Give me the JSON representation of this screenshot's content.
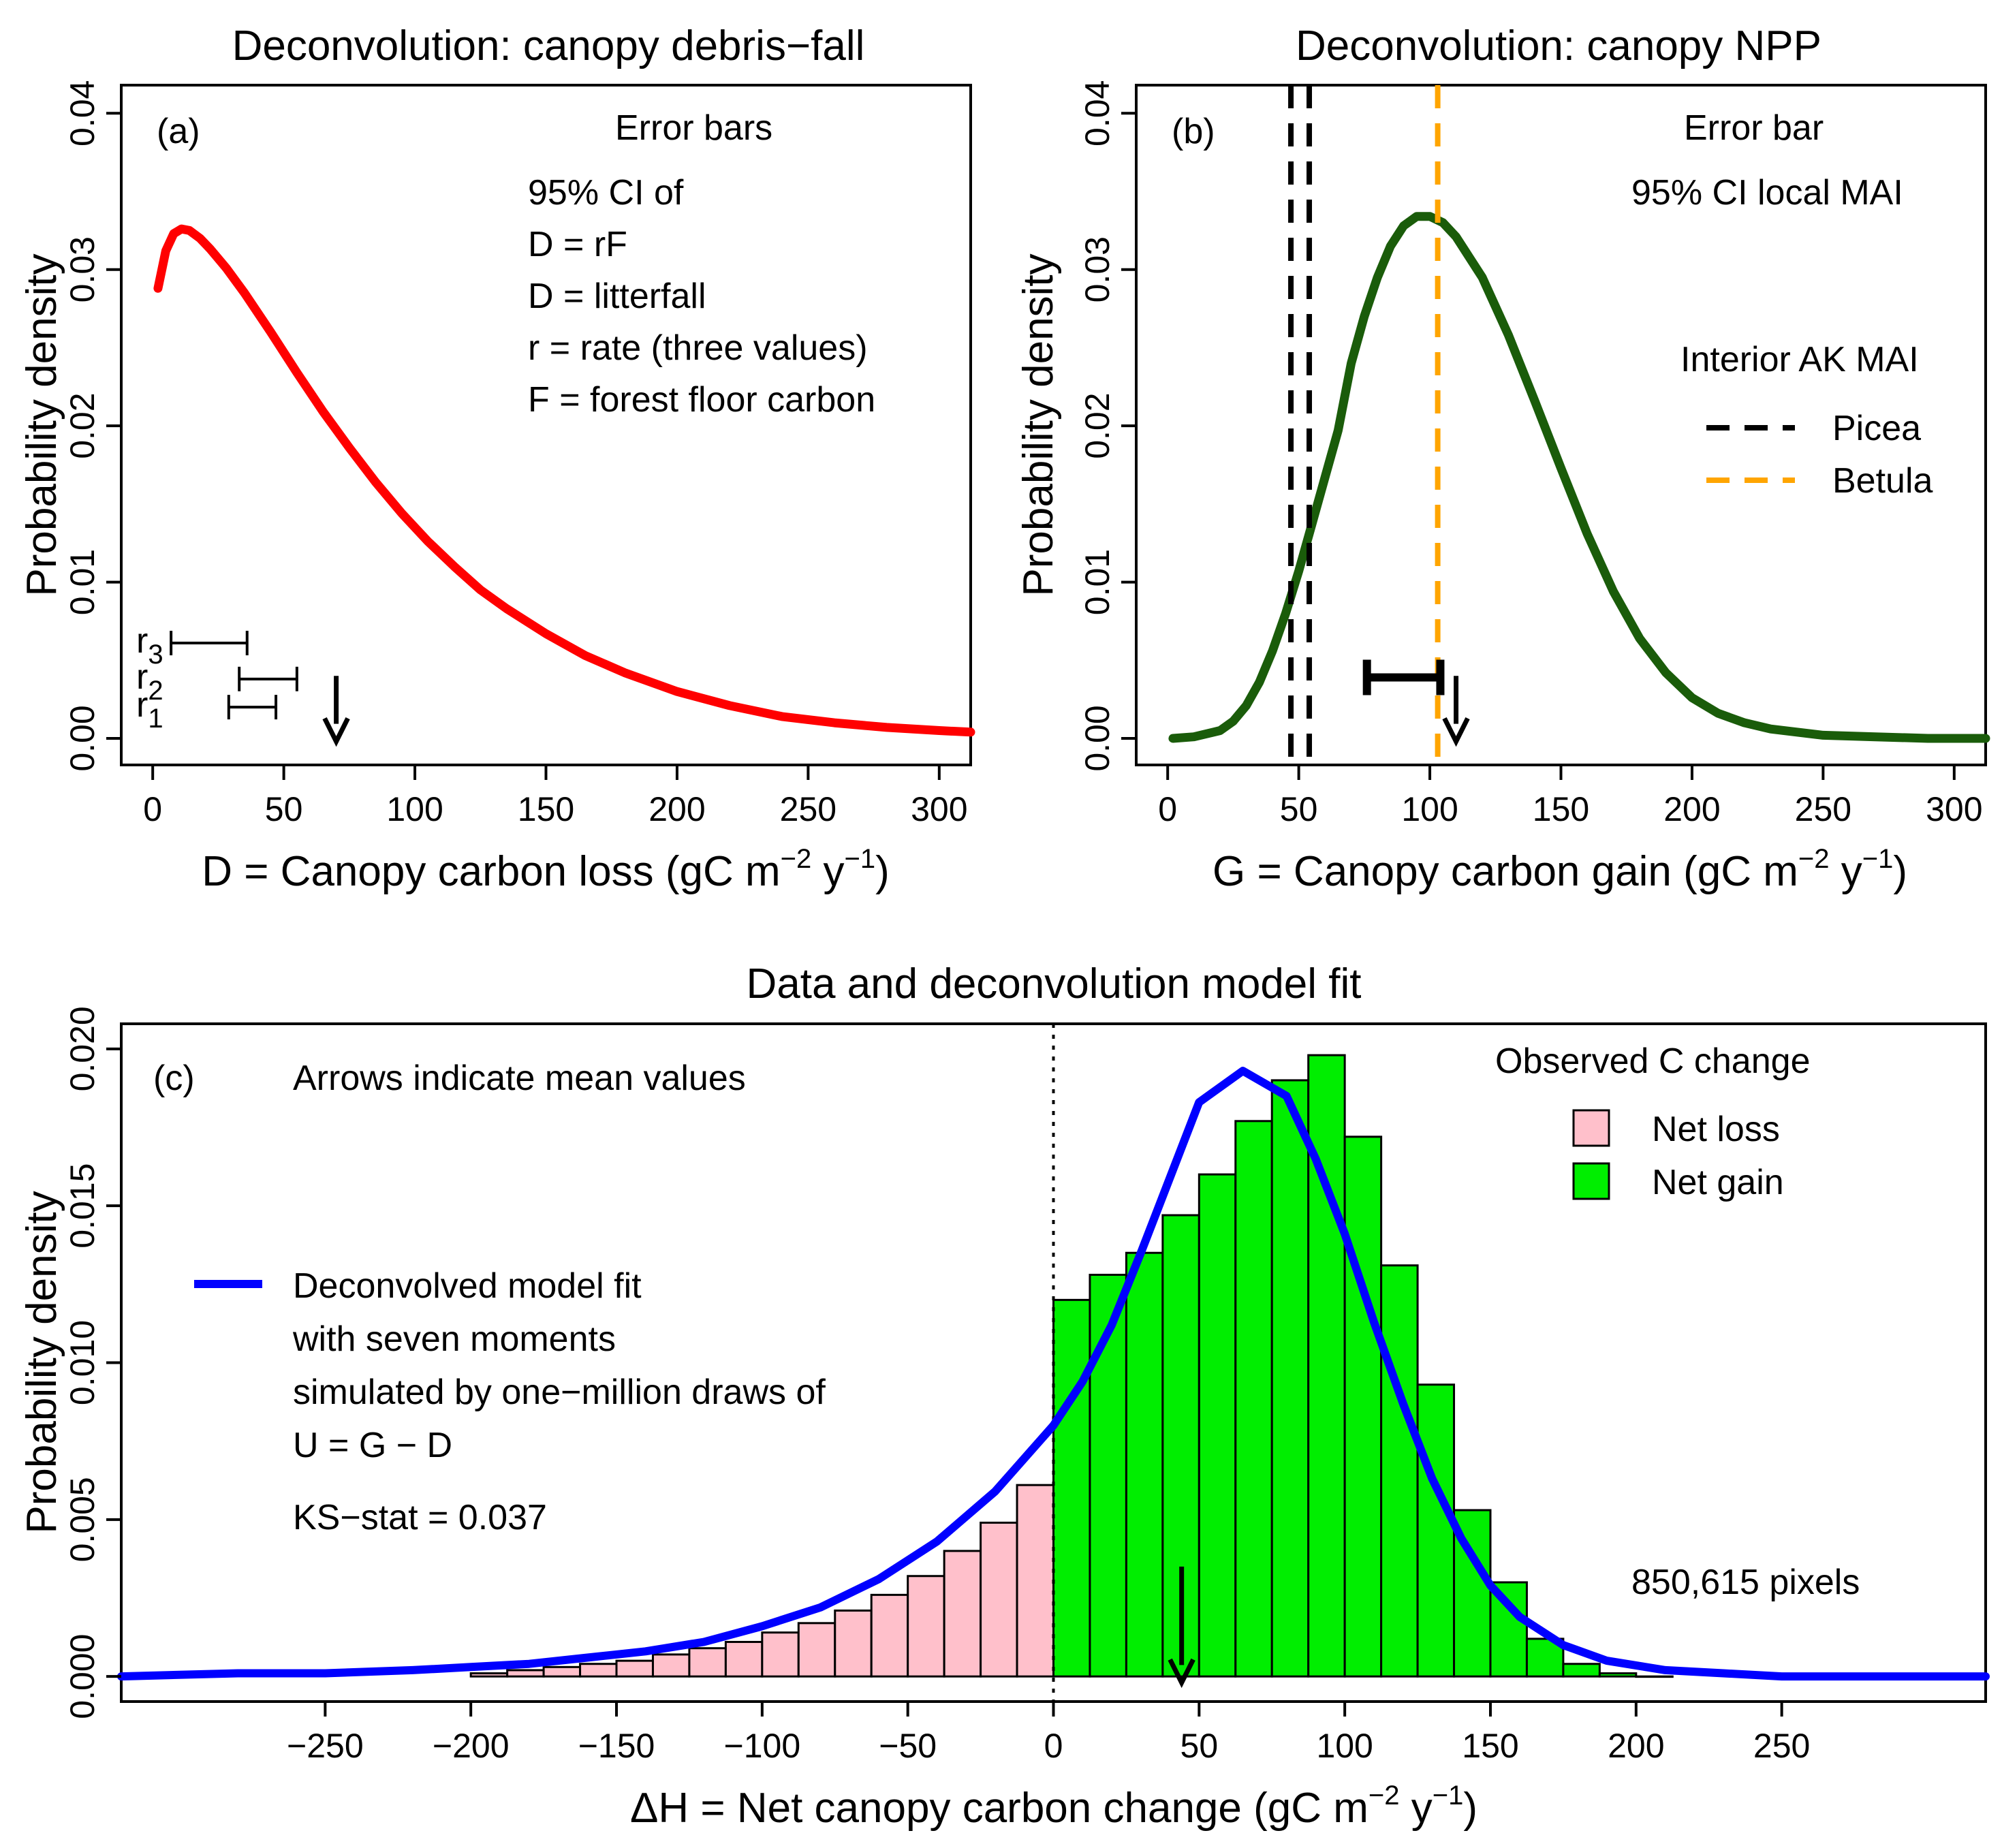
{
  "chart_data": [
    {
      "panel": "(a)",
      "type": "line",
      "title": "Deconvolution: canopy debris−fall",
      "xlabel": {
        "prefix": "D = Canopy carbon loss (gC m",
        "sup1": "−2",
        "mid": " y",
        "sup2": "−1",
        "suffix": ")"
      },
      "ylabel": "Probability density",
      "xlim": [
        -12,
        312
      ],
      "ylim": [
        -0.0017,
        0.0418
      ],
      "xticks": [
        0,
        50,
        100,
        150,
        200,
        250,
        300
      ],
      "yticks": [
        0.0,
        0.01,
        0.02,
        0.03,
        0.04
      ],
      "ytick_labels": [
        "0.00",
        "0.01",
        "0.02",
        "0.03",
        "0.04"
      ],
      "series": [
        {
          "color": "#ff0000",
          "x": [
            2,
            5,
            8,
            11,
            14,
            18,
            22,
            28,
            35,
            45,
            55,
            65,
            75,
            85,
            95,
            105,
            115,
            125,
            135,
            150,
            165,
            180,
            200,
            220,
            240,
            260,
            280,
            300,
            312
          ],
          "y": [
            0.0288,
            0.0312,
            0.0323,
            0.0326,
            0.0325,
            0.032,
            0.0313,
            0.0301,
            0.0285,
            0.026,
            0.0234,
            0.0209,
            0.0186,
            0.0164,
            0.0144,
            0.0126,
            0.011,
            0.0095,
            0.0083,
            0.0067,
            0.0053,
            0.0042,
            0.003,
            0.0021,
            0.0014,
            0.001,
            0.0007,
            0.0005,
            0.0004
          ]
        }
      ],
      "error_bars": [
        {
          "label": "r",
          "sub": "3",
          "y": 0.0061,
          "x0": 7,
          "x1": 36
        },
        {
          "label": "r",
          "sub": "2",
          "y": 0.0038,
          "x0": 33,
          "x1": 55
        },
        {
          "label": "r",
          "sub": "1",
          "y": 0.002,
          "x0": 29,
          "x1": 47
        }
      ],
      "mean_arrow": {
        "x": 70,
        "y_from": 0.004,
        "y_to": -0.0002
      },
      "annotations": {
        "panel_label": "(a)",
        "heading": "Error bars",
        "lines": [
          "95% CI of",
          "D = rF",
          "D = litterfall",
          "r = rate (three values)",
          "F = forest floor carbon"
        ]
      }
    },
    {
      "panel": "(b)",
      "type": "line",
      "title": "Deconvolution: canopy NPP",
      "xlabel": {
        "prefix": "G = Canopy carbon gain (gC m",
        "sup1": "−2",
        "mid": " y",
        "sup2": "−1",
        "suffix": ")"
      },
      "ylabel": "Probability density",
      "xlim": [
        -12,
        312
      ],
      "ylim": [
        -0.0017,
        0.0418
      ],
      "xticks": [
        0,
        50,
        100,
        150,
        200,
        250,
        300
      ],
      "yticks": [
        0.0,
        0.01,
        0.02,
        0.03,
        0.04
      ],
      "ytick_labels": [
        "0.00",
        "0.01",
        "0.02",
        "0.03",
        "0.04"
      ],
      "series": [
        {
          "color": "#1a5c0a",
          "x": [
            2,
            10,
            20,
            25,
            30,
            35,
            40,
            45,
            50,
            55,
            60,
            65,
            70,
            75,
            80,
            85,
            90,
            95,
            100,
            105,
            110,
            120,
            130,
            140,
            150,
            160,
            170,
            180,
            190,
            200,
            210,
            220,
            230,
            250,
            270,
            290,
            312
          ],
          "y": [
            0.0,
            0.0001,
            0.0005,
            0.0011,
            0.0021,
            0.0036,
            0.0056,
            0.008,
            0.0107,
            0.0137,
            0.0167,
            0.0197,
            0.024,
            0.027,
            0.0295,
            0.0315,
            0.0328,
            0.0334,
            0.0334,
            0.033,
            0.0321,
            0.0295,
            0.0258,
            0.0216,
            0.0173,
            0.0131,
            0.0094,
            0.0064,
            0.0042,
            0.0026,
            0.0016,
            0.001,
            0.0006,
            0.0002,
            0.0001,
            0.0,
            0.0
          ]
        }
      ],
      "vlines": [
        {
          "x": 47,
          "color": "#000000"
        },
        {
          "x": 54,
          "color": "#000000"
        },
        {
          "x": 103,
          "color": "#ffa500"
        }
      ],
      "error_bars": [
        {
          "y": 0.0039,
          "x0": 76,
          "x1": 104
        }
      ],
      "mean_arrow": {
        "x": 110,
        "y_from": 0.004,
        "y_to": -0.0002
      },
      "annotations": {
        "panel_label": "(b)",
        "heading": "Error bar",
        "ci_text": "95% CI local MAI"
      },
      "legend": {
        "position": "right",
        "title": "Interior AK MAI",
        "entries": [
          {
            "name": "Picea",
            "color": "#000000"
          },
          {
            "name": "Betula",
            "color": "#ffa500"
          }
        ]
      }
    },
    {
      "panel": "(c)",
      "type": "bar",
      "title": "Data and deconvolution model fit",
      "xlabel": {
        "prefix": "ΔH = Net canopy carbon change (gC m",
        "sup1": "−2",
        "mid": " y",
        "sup2": "−1",
        "suffix": ")"
      },
      "ylabel": "Probability density",
      "xlim": [
        -320,
        320
      ],
      "ylim": [
        -0.0008,
        0.0208
      ],
      "xticks": [
        -250,
        -200,
        -150,
        -100,
        -50,
        0,
        50,
        100,
        150,
        200,
        250
      ],
      "xtick_labels": [
        "−250",
        "−200",
        "−150",
        "−100",
        "−50",
        "0",
        "50",
        "100",
        "150",
        "200",
        "250"
      ],
      "yticks": [
        0.0,
        0.005,
        0.01,
        0.015,
        0.02
      ],
      "ytick_labels": [
        "0.000",
        "0.005",
        "0.010",
        "0.015",
        "0.020"
      ],
      "bin_width": 12.5,
      "bin_starts": [
        -200,
        -187.5,
        -175,
        -162.5,
        -150,
        -137.5,
        -125,
        -112.5,
        -100,
        -87.5,
        -75,
        -62.5,
        -50,
        -37.5,
        -25,
        -12.5,
        0,
        12.5,
        25,
        37.5,
        50,
        62.5,
        75,
        87.5,
        100,
        112.5,
        125,
        137.5,
        150,
        162.5,
        175,
        187.5,
        200
      ],
      "bin_values": [
        0.0001,
        0.0002,
        0.0003,
        0.0004,
        0.0005,
        0.0007,
        0.0009,
        0.0011,
        0.0014,
        0.0017,
        0.0021,
        0.0026,
        0.0032,
        0.004,
        0.0049,
        0.0061,
        0.012,
        0.0128,
        0.0135,
        0.0147,
        0.016,
        0.0177,
        0.019,
        0.0198,
        0.0172,
        0.0131,
        0.0093,
        0.0053,
        0.003,
        0.0012,
        0.0004,
        0.0001,
        0.0
      ],
      "fit_curve": {
        "name": "Deconvolved model fit",
        "color": "#0000ff",
        "x": [
          -320,
          -280,
          -250,
          -220,
          -200,
          -180,
          -160,
          -140,
          -120,
          -100,
          -80,
          -60,
          -40,
          -20,
          0,
          10,
          20,
          30,
          40,
          50,
          65,
          80,
          90,
          100,
          110,
          120,
          130,
          140,
          150,
          160,
          175,
          190,
          210,
          230,
          250,
          280,
          320
        ],
        "y": [
          0.0,
          0.0001,
          0.0001,
          0.0002,
          0.0003,
          0.0004,
          0.0006,
          0.0008,
          0.0011,
          0.0016,
          0.0022,
          0.0031,
          0.0043,
          0.0059,
          0.008,
          0.0094,
          0.0112,
          0.0135,
          0.0159,
          0.0183,
          0.0193,
          0.0185,
          0.0165,
          0.0141,
          0.0113,
          0.0087,
          0.0063,
          0.0044,
          0.0029,
          0.0019,
          0.001,
          0.0005,
          0.0002,
          0.0001,
          0.0,
          0.0,
          0.0
        ]
      },
      "zero_line": {
        "x": 0
      },
      "mean_arrow": {
        "x": 44,
        "y_from": 0.0035,
        "y_to": -0.0002
      },
      "annotations": {
        "panel_label": "(c)",
        "arrows_note": "Arrows indicate mean values",
        "fit_lines": [
          "Deconvolved model fit",
          "with seven moments",
          "simulated by one−million draws of",
          "U = G − D"
        ],
        "ks": "KS−stat = 0.037",
        "pixels": "850,615 pixels"
      },
      "legend": {
        "position": "top-right",
        "title": "Observed C change",
        "entries": [
          {
            "name": "Net loss",
            "color": "#ffc0cb"
          },
          {
            "name": "Net gain",
            "color": "#00ee00"
          }
        ]
      }
    }
  ]
}
